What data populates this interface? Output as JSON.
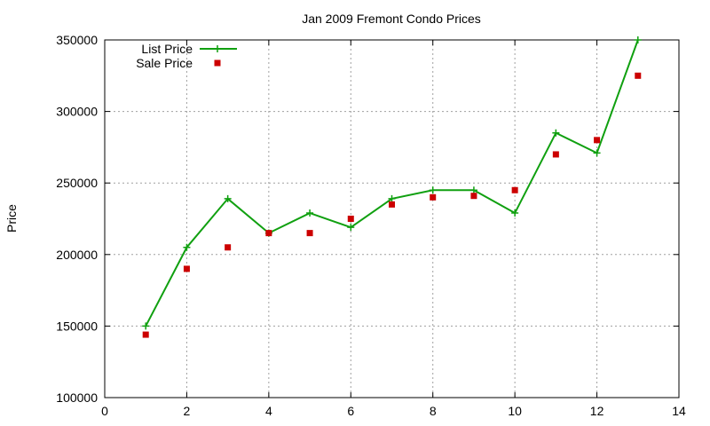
{
  "chart_data": {
    "type": "line",
    "title": "Jan 2009 Fremont Condo Prices",
    "xlabel": "",
    "ylabel": "Price",
    "xlim": [
      0,
      14
    ],
    "ylim": [
      100000,
      350000
    ],
    "xticks": [
      0,
      2,
      4,
      6,
      8,
      10,
      12,
      14
    ],
    "yticks": [
      100000,
      150000,
      200000,
      250000,
      300000,
      350000
    ],
    "grid": true,
    "legend_position": "top-left",
    "series": [
      {
        "name": "List Price",
        "style": "line+cross",
        "color": "#10a010",
        "x": [
          1,
          2,
          3,
          4,
          5,
          6,
          7,
          8,
          9,
          10,
          11,
          12,
          13
        ],
        "y": [
          150000,
          205000,
          239000,
          215000,
          229000,
          219000,
          239000,
          245000,
          245000,
          229000,
          285000,
          271000,
          350000
        ]
      },
      {
        "name": "Sale Price",
        "style": "square",
        "color": "#cc0000",
        "x": [
          1,
          2,
          3,
          4,
          5,
          6,
          7,
          8,
          9,
          10,
          11,
          12,
          13
        ],
        "y": [
          144000,
          190000,
          205000,
          215000,
          215000,
          225000,
          235000,
          240000,
          241000,
          245000,
          270000,
          280000,
          325000
        ]
      }
    ]
  }
}
